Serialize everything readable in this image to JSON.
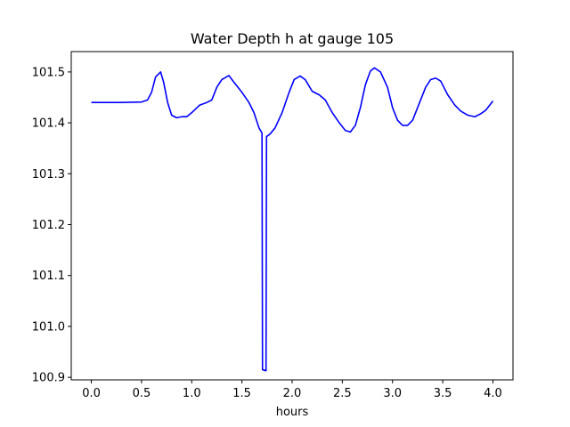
{
  "chart_data": {
    "type": "line",
    "title": "Water Depth h at gauge 105",
    "xlabel": "hours",
    "ylabel": "",
    "xlim": [
      -0.2,
      4.2
    ],
    "ylim": [
      100.895,
      101.54
    ],
    "grid": false,
    "x_ticks": [
      0.0,
      0.5,
      1.0,
      1.5,
      2.0,
      2.5,
      3.0,
      3.5,
      4.0
    ],
    "x_tick_labels": [
      "0.0",
      "0.5",
      "1.0",
      "1.5",
      "2.0",
      "2.5",
      "3.0",
      "3.5",
      "4.0"
    ],
    "y_ticks": [
      100.9,
      101.0,
      101.1,
      101.2,
      101.3,
      101.4,
      101.5
    ],
    "y_tick_labels": [
      "100.9",
      "101.0",
      "101.1",
      "101.2",
      "101.3",
      "101.4",
      "101.5"
    ],
    "series": [
      {
        "color": "#0000ff",
        "points": [
          [
            0.0,
            101.44
          ],
          [
            0.3,
            101.44
          ],
          [
            0.5,
            101.441
          ],
          [
            0.56,
            101.445
          ],
          [
            0.6,
            101.46
          ],
          [
            0.64,
            101.49
          ],
          [
            0.69,
            101.5
          ],
          [
            0.72,
            101.48
          ],
          [
            0.76,
            101.44
          ],
          [
            0.8,
            101.415
          ],
          [
            0.85,
            101.41
          ],
          [
            0.9,
            101.412
          ],
          [
            0.95,
            101.412
          ],
          [
            1.0,
            101.42
          ],
          [
            1.08,
            101.435
          ],
          [
            1.15,
            101.44
          ],
          [
            1.2,
            101.445
          ],
          [
            1.25,
            101.47
          ],
          [
            1.3,
            101.485
          ],
          [
            1.37,
            101.493
          ],
          [
            1.42,
            101.48
          ],
          [
            1.5,
            101.46
          ],
          [
            1.57,
            101.44
          ],
          [
            1.62,
            101.42
          ],
          [
            1.67,
            101.39
          ],
          [
            1.7,
            101.38
          ],
          [
            1.705,
            100.915
          ],
          [
            1.74,
            100.913
          ],
          [
            1.745,
            101.373
          ],
          [
            1.78,
            101.378
          ],
          [
            1.83,
            101.39
          ],
          [
            1.9,
            101.42
          ],
          [
            1.97,
            101.46
          ],
          [
            2.02,
            101.485
          ],
          [
            2.08,
            101.492
          ],
          [
            2.13,
            101.485
          ],
          [
            2.2,
            101.462
          ],
          [
            2.27,
            101.455
          ],
          [
            2.33,
            101.445
          ],
          [
            2.4,
            101.42
          ],
          [
            2.47,
            101.4
          ],
          [
            2.53,
            101.385
          ],
          [
            2.58,
            101.382
          ],
          [
            2.63,
            101.395
          ],
          [
            2.68,
            101.43
          ],
          [
            2.73,
            101.475
          ],
          [
            2.78,
            101.502
          ],
          [
            2.82,
            101.508
          ],
          [
            2.88,
            101.5
          ],
          [
            2.95,
            101.47
          ],
          [
            3.0,
            101.43
          ],
          [
            3.05,
            101.405
          ],
          [
            3.1,
            101.395
          ],
          [
            3.15,
            101.395
          ],
          [
            3.2,
            101.405
          ],
          [
            3.27,
            101.44
          ],
          [
            3.33,
            101.47
          ],
          [
            3.38,
            101.485
          ],
          [
            3.43,
            101.488
          ],
          [
            3.48,
            101.482
          ],
          [
            3.55,
            101.455
          ],
          [
            3.62,
            101.435
          ],
          [
            3.68,
            101.423
          ],
          [
            3.75,
            101.415
          ],
          [
            3.82,
            101.412
          ],
          [
            3.88,
            101.418
          ],
          [
            3.93,
            101.425
          ],
          [
            4.0,
            101.443
          ]
        ]
      }
    ]
  }
}
